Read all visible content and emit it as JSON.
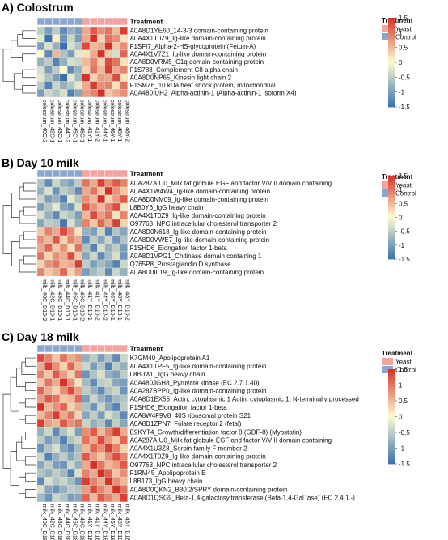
{
  "colors": {
    "yeast": "#f3a3a0",
    "control": "#8aa6cf",
    "scale_low": "#3a6fb0",
    "scale_mid": "#fefcd0",
    "scale_high": "#d73027",
    "dendrogram": "#333333",
    "cell_border": "#d8d8d8"
  },
  "legend": {
    "title": "Treatment",
    "yeast": "Yeast",
    "control": "Control"
  },
  "treatment_label": "Treatment",
  "chart_data": [
    {
      "type": "heatmap",
      "title": "A) Colostrum",
      "scale": {
        "min": -1.5,
        "max": 1.5,
        "ticks": [
          "1.5",
          "1",
          "0.5",
          "0",
          "-0.5",
          "-1",
          "-1.5"
        ]
      },
      "legend_placement": "right",
      "columns": [
        {
          "label": "colostrum_40C-2",
          "group": "Control"
        },
        {
          "label": "colostrum_42C-1",
          "group": "Control"
        },
        {
          "label": "colostrum_43C-1",
          "group": "Control"
        },
        {
          "label": "colostrum_44C-2",
          "group": "Control"
        },
        {
          "label": "colostrum_45C-1",
          "group": "Control"
        },
        {
          "label": "colostrum_46C-1",
          "group": "Control"
        },
        {
          "label": "colostrum_41Y-1",
          "group": "Yeast"
        },
        {
          "label": "colostrum_41Y-2",
          "group": "Yeast"
        },
        {
          "label": "colostrum_44Y-1",
          "group": "Yeast"
        },
        {
          "label": "colostrum_46Y-1",
          "group": "Yeast"
        },
        {
          "label": "colostrum_48Y-1",
          "group": "Yeast"
        },
        {
          "label": "colostrum_48Y-2",
          "group": "Yeast"
        }
      ],
      "rows": [
        "A0A8D1YE60_14-3-3 domain-containing protein",
        "A0A4X1T0Z9_Ig-like domain-containing protein",
        "F1SFI7_Alpha-2-HS-glycoprotein (Fetuin-A)",
        "A0A4X1V7Z1_Ig-like domain-containing protein",
        "A0A8D0VRM5_C1q domain-containing protein",
        "F1S788_Complement C8 alpha chain",
        "A0A8D0NP65_Kinesin light chain 2",
        "F1SMZ6_10 kDa heat shock protein, mitochondrial",
        "A0A480IUH2_Alpha-actinin-1 (Alpha-actinin-1 isoform X4)"
      ],
      "values": [
        [
          -0.5,
          -1.0,
          -0.5,
          -1.2,
          -0.8,
          -1.0,
          0.6,
          1.2,
          0.8,
          1.0,
          0.5,
          1.4
        ],
        [
          -0.2,
          -1.6,
          0.1,
          -1.1,
          -0.4,
          -1.0,
          0.6,
          1.5,
          0.3,
          1.0,
          0.8,
          0.2
        ],
        [
          -1.0,
          -0.3,
          -0.8,
          -1.5,
          -0.3,
          -0.6,
          1.3,
          0.5,
          0.6,
          1.5,
          0.4,
          0.8
        ],
        [
          0.0,
          -1.2,
          0.5,
          -0.6,
          -1.0,
          -0.2,
          0.2,
          0.6,
          1.6,
          0.4,
          -0.3,
          1.1
        ],
        [
          -0.8,
          -0.5,
          -1.3,
          -0.8,
          -0.3,
          -0.4,
          0.5,
          0.9,
          0.3,
          1.3,
          1.0,
          0.2
        ],
        [
          -0.3,
          -1.0,
          -0.5,
          0.0,
          -1.2,
          -0.8,
          0.3,
          1.0,
          0.5,
          1.4,
          0.6,
          0.9
        ],
        [
          -0.2,
          -0.6,
          -1.0,
          -1.5,
          -0.2,
          -0.7,
          1.5,
          0.3,
          0.7,
          0.6,
          1.3,
          0.2
        ],
        [
          -0.5,
          -1.3,
          -0.4,
          -0.8,
          -0.6,
          -0.2,
          0.6,
          1.4,
          0.8,
          0.9,
          0.2,
          1.0
        ],
        [
          -1.0,
          -0.4,
          -0.6,
          -0.3,
          -1.3,
          -0.9,
          0.7,
          0.9,
          1.5,
          0.4,
          0.6,
          0.8
        ]
      ]
    },
    {
      "type": "heatmap",
      "title": "B) Day 10 milk",
      "scale": {
        "min": -1.5,
        "max": 1.5,
        "ticks": [
          "1.5",
          "1",
          "0.5",
          "0",
          "-0.5",
          "-1",
          "-1.5"
        ]
      },
      "legend_placement": "right",
      "columns": [
        {
          "label": "milk_40C_D10-2",
          "group": "Control"
        },
        {
          "label": "milk_42C_D10-1",
          "group": "Control"
        },
        {
          "label": "milk_43C_D10-1",
          "group": "Control"
        },
        {
          "label": "milk_44C_D10-1",
          "group": "Control"
        },
        {
          "label": "milk_45C_D10-1",
          "group": "Control"
        },
        {
          "label": "milk_46C_D10-2",
          "group": "Control"
        },
        {
          "label": "milk_41Y_D10-1",
          "group": "Yeast"
        },
        {
          "label": "milk_41Y_D10-2",
          "group": "Yeast"
        },
        {
          "label": "milk_44Y_D10-2",
          "group": "Yeast"
        },
        {
          "label": "milk_46Y_D10-1",
          "group": "Yeast"
        },
        {
          "label": "milk_48Y_D10-1",
          "group": "Yeast"
        },
        {
          "label": "milk_48Y_D10-2",
          "group": "Yeast"
        }
      ],
      "rows": [
        "A0A287AIU0_Milk fat globule EGF and factor V/VIII domain containing",
        "A0A4X1W4W4_Ig-like domain-containing protein",
        "A0A8D0NM09_Ig-like domain-containing protein",
        "L8B0Y6_IgG heavy chain",
        "A0A4X1T0Z9_Ig-like domain-containing protein",
        "O97763_NPC intracellular cholesterol transporter 2",
        "A0A8D0N618_Ig-like domain-containing protein",
        "A0A8D0VWE7_Ig-like domain-containing protein",
        "F1SHD6_Elongation factor 1-beta",
        "A0A8D1VPG1_Chitinase domain containing 1",
        "Q765P8_Prostaglandin D synthase",
        "A0A8D0IL19_Ig-like domain-containing protein"
      ],
      "values": [
        [
          -0.6,
          -1.2,
          -0.4,
          -0.8,
          -1.0,
          -0.5,
          1.0,
          0.6,
          1.4,
          0.8,
          1.2,
          0.9
        ],
        [
          -0.8,
          -0.3,
          -1.1,
          -0.5,
          -0.7,
          -1.2,
          0.6,
          1.0,
          0.4,
          1.5,
          0.8,
          0.4
        ],
        [
          -0.4,
          -1.0,
          -0.8,
          -1.3,
          -0.2,
          -0.6,
          0.8,
          0.5,
          1.6,
          0.3,
          0.7,
          1.2
        ],
        [
          -1.0,
          -0.6,
          -0.2,
          -0.9,
          -1.1,
          -0.3,
          1.2,
          0.8,
          0.5,
          0.9,
          1.3,
          0.2
        ],
        [
          -0.3,
          -0.8,
          -1.2,
          -0.4,
          -0.6,
          -1.0,
          0.5,
          1.3,
          0.7,
          1.0,
          0.2,
          0.9
        ],
        [
          -0.9,
          -0.5,
          -0.6,
          -1.4,
          -0.3,
          -0.8,
          0.9,
          0.4,
          1.1,
          0.6,
          1.4,
          0.3
        ],
        [
          0.4,
          0.9,
          0.6,
          1.3,
          0.8,
          0.2,
          -0.8,
          -1.0,
          -0.4,
          -1.3,
          -0.6,
          -0.9
        ],
        [
          0.8,
          0.5,
          1.2,
          0.3,
          0.9,
          0.6,
          -1.2,
          -0.5,
          -0.9,
          -0.4,
          -1.1,
          -0.6
        ],
        [
          0.6,
          1.1,
          0.4,
          0.8,
          0.2,
          1.0,
          -0.6,
          -1.3,
          -0.3,
          -0.8,
          -0.5,
          -1.0
        ],
        [
          1.0,
          0.3,
          0.8,
          0.6,
          1.3,
          0.4,
          -0.9,
          -0.4,
          -1.2,
          -0.7,
          -0.3,
          -1.1
        ],
        [
          0.3,
          0.8,
          1.0,
          0.5,
          0.6,
          1.4,
          -0.5,
          -1.0,
          -0.7,
          -0.9,
          -1.3,
          -0.4
        ],
        [
          0.9,
          0.4,
          0.6,
          1.1,
          0.3,
          0.7,
          -1.0,
          -0.7,
          -0.5,
          -1.2,
          -0.4,
          -0.8
        ]
      ]
    },
    {
      "type": "heatmap",
      "title": "C) Day 18 milk",
      "scale": {
        "min": -1.5,
        "max": 1.5,
        "ticks": [
          "1.5",
          "1",
          "0.5",
          "0",
          "-0.5",
          "-1",
          "-1.5"
        ]
      },
      "legend_placement": "right",
      "columns": [
        {
          "label": "milk_40C_D18-2",
          "group": "Control"
        },
        {
          "label": "milk_42C_D18-1",
          "group": "Control"
        },
        {
          "label": "milk_43C_D18-1",
          "group": "Control"
        },
        {
          "label": "milk_44C_D18-1",
          "group": "Control"
        },
        {
          "label": "milk_45C_D18-1",
          "group": "Control"
        },
        {
          "label": "milk_46C_D18-2",
          "group": "Control"
        },
        {
          "label": "milk_41Y_D18-1",
          "group": "Yeast"
        },
        {
          "label": "milk_41Y_D18-2",
          "group": "Yeast"
        },
        {
          "label": "milk_44Y_D18-1",
          "group": "Yeast"
        },
        {
          "label": "milk_46Y_D18-1",
          "group": "Yeast"
        },
        {
          "label": "milk_48Y_D18-1",
          "group": "Yeast"
        },
        {
          "label": "milk_48Y_D18-2",
          "group": "Yeast"
        }
      ],
      "rows": [
        "K7GM40_Apolipoprotein A1",
        "A0A4X1TPF5_Ig-like domain-containing protein",
        "L8B0W0_IgG heavy chain",
        "A0A480JGH8_Pyruvate kinase (EC 2.7.1.40)",
        "A0A287BPP0_Ig-like domain-containing protein",
        "A0A8D1EX55_Actin, cytoplasmic 1 Actin, cytoplasmic 1, N-terminally processed",
        "F1SHD6_Elongation factor 1-beta",
        "A0A8W4F9V8_40S ribosomal protein S21",
        "A0A8D1ZPN7_Folate receptor 2 (fetal)",
        "E9KYT4_Growth/differentiation factor 8 (GDF-8) (Myostatin)",
        "A0A287AIU0_Milk fat globule EGF and factor V/VIII domain containing",
        "A0A4X1U3Z8_Serpin family F member 2",
        "A0A4X1T0Z9_Ig-like domain-containing protein",
        "O97763_NPC intracellular cholesterol transporter 2",
        "F1RM45_Apolipoprotein E",
        "L8B173_IgG heavy chain",
        "A0A8D0QKN2_B30.2/SPRY domain-containing protein",
        "A0A8D1QSG9_Beta-1,4-galactosyltransferase (Beta-1,4-GalTase) (EC 2.4.1.-)"
      ],
      "values": [
        [
          1.3,
          0.9,
          0.4,
          1.0,
          0.6,
          0.8,
          -0.8,
          -0.5,
          -1.0,
          -0.6,
          -1.2,
          -0.4
        ],
        [
          0.6,
          1.4,
          0.8,
          0.3,
          1.1,
          0.5,
          -0.4,
          -1.0,
          -0.6,
          -1.3,
          -0.5,
          -0.8
        ],
        [
          0.9,
          0.4,
          1.2,
          0.7,
          0.3,
          1.0,
          -1.1,
          -0.6,
          -0.3,
          -0.8,
          -1.0,
          -0.5
        ],
        [
          0.4,
          1.0,
          0.6,
          1.5,
          0.8,
          0.2,
          -0.7,
          -1.2,
          -0.5,
          -0.4,
          -0.9,
          -1.0
        ],
        [
          1.1,
          0.6,
          0.3,
          0.8,
          1.3,
          0.7,
          -0.5,
          -0.8,
          -1.2,
          -0.6,
          -0.4,
          -1.1
        ],
        [
          0.7,
          1.2,
          1.0,
          0.4,
          0.5,
          1.1,
          -1.0,
          -0.4,
          -0.8,
          -1.1,
          -0.7,
          -0.6
        ],
        [
          1.6,
          0.5,
          0.8,
          1.1,
          0.3,
          0.6,
          -0.6,
          -1.1,
          -0.4,
          -0.9,
          -1.3,
          -0.5
        ],
        [
          0.5,
          0.9,
          1.4,
          0.6,
          1.0,
          0.3,
          -0.9,
          -0.5,
          -1.0,
          -0.3,
          -0.6,
          -1.2
        ],
        [
          1.4,
          0.7,
          0.5,
          1.2,
          0.8,
          1.0,
          -0.4,
          -0.8,
          -0.6,
          -1.2,
          -0.5,
          -0.9
        ],
        [
          -0.8,
          -0.4,
          -1.2,
          -0.6,
          -0.3,
          -1.0,
          0.8,
          1.2,
          0.5,
          0.9,
          1.4,
          0.6
        ],
        [
          -0.5,
          -1.0,
          -0.7,
          -1.3,
          -0.6,
          -0.4,
          1.0,
          0.6,
          1.3,
          0.7,
          0.4,
          1.1
        ],
        [
          -1.1,
          -0.6,
          -0.3,
          -0.9,
          -1.2,
          -0.7,
          0.5,
          1.1,
          0.8,
          1.4,
          0.9,
          0.3
        ],
        [
          -0.4,
          -1.3,
          -0.8,
          -0.5,
          -0.9,
          -0.6,
          1.2,
          0.7,
          0.4,
          0.8,
          1.3,
          0.9
        ],
        [
          -0.9,
          -0.5,
          -1.0,
          -1.1,
          -0.4,
          -0.8,
          0.6,
          1.5,
          1.0,
          0.5,
          0.7,
          1.2
        ],
        [
          -0.6,
          -0.8,
          -0.5,
          -0.7,
          -1.3,
          -0.3,
          0.9,
          0.6,
          1.6,
          1.1,
          0.4,
          0.8
        ],
        [
          -1.2,
          -0.3,
          -0.6,
          -0.4,
          -0.7,
          -1.1,
          1.4,
          0.9,
          0.6,
          1.6,
          0.8,
          0.5
        ],
        [
          -0.3,
          -0.9,
          -1.1,
          -0.8,
          -0.5,
          -0.6,
          0.7,
          1.3,
          0.9,
          0.6,
          1.5,
          1.0
        ],
        [
          -0.7,
          -1.1,
          -0.4,
          -0.6,
          -1.0,
          -0.9,
          1.1,
          0.5,
          1.2,
          0.9,
          0.6,
          1.4
        ]
      ]
    }
  ]
}
